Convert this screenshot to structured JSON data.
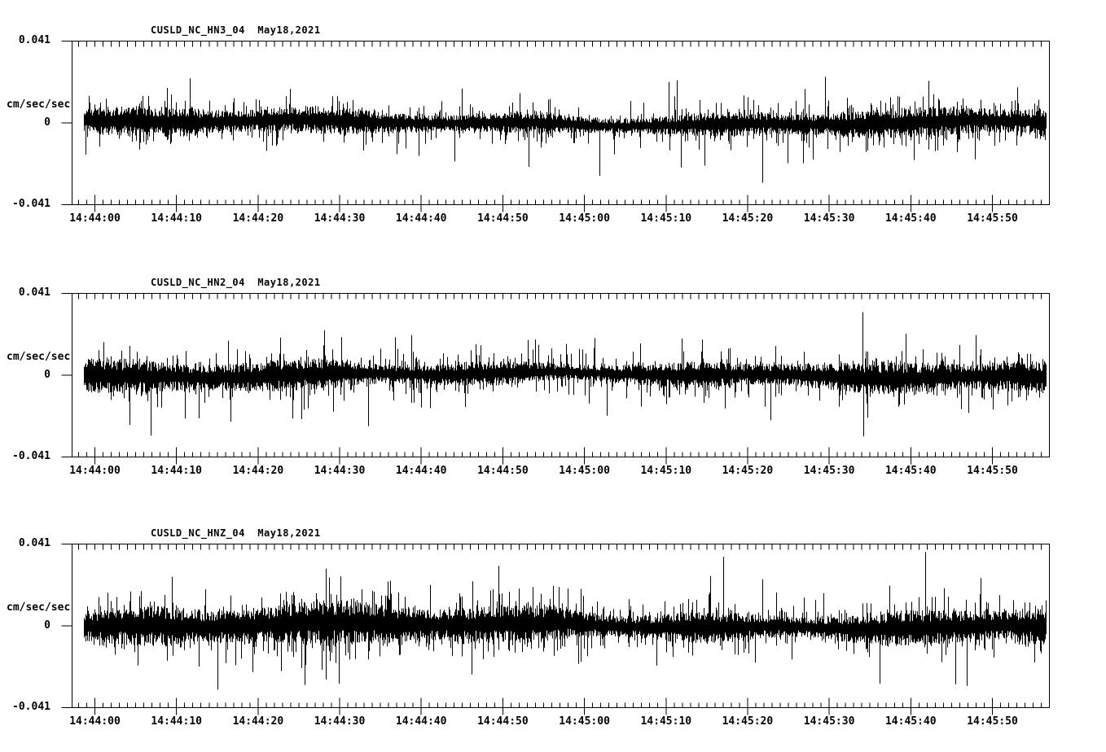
{
  "page": {
    "background": "#ffffff",
    "ink": "#000000",
    "description": "Three-channel seismogram strip chart for station CUSLD (NC network), May 18, 2021"
  },
  "time_axis": {
    "labels": [
      "14:44:00",
      "14:44:10",
      "14:44:20",
      "14:44:30",
      "14:44:40",
      "14:44:50",
      "14:45:00",
      "14:45:10",
      "14:45:20",
      "14:45:30",
      "14:45:40",
      "14:45:50"
    ],
    "major_tick_interval_s": 10,
    "minor_tick_interval_s": 1,
    "start": "14:43:57",
    "end": "14:45:57"
  },
  "panels": [
    {
      "title": "CUSLD_NC_HN3_04  May18,2021",
      "y_axis": {
        "top_label": "0.041",
        "mid_label": "0",
        "bottom_label": "-0.041",
        "units": "cm/sec/sec"
      }
    },
    {
      "title": "CUSLD_NC_HN2_04  May18,2021",
      "y_axis": {
        "top_label": "0.041",
        "mid_label": "0",
        "bottom_label": "-0.041",
        "units": "cm/sec/sec"
      }
    },
    {
      "title": "CUSLD_NC_HNZ_04  May18,2021",
      "y_axis": {
        "top_label": "0.041",
        "mid_label": "0",
        "bottom_label": "-0.041",
        "units": "cm/sec/sec"
      }
    }
  ],
  "chart_data": [
    {
      "type": "line",
      "name": "CUSLD_NC_HN3_04",
      "title": "CUSLD_NC_HN3_04  May18,2021",
      "date_label": "May18,2021",
      "ylabel": "cm/sec/sec",
      "ylim": [
        -0.041,
        0.041
      ],
      "y_tick_values": [
        0.041,
        0,
        -0.041
      ],
      "x_tick_labels": [
        "14:44:00",
        "14:44:10",
        "14:44:20",
        "14:44:30",
        "14:44:40",
        "14:44:50",
        "14:45:00",
        "14:45:10",
        "14:45:20",
        "14:45:30",
        "14:45:40",
        "14:45:50"
      ],
      "x_range": [
        "14:43:57",
        "14:45:57"
      ],
      "x_minor_tick_s": 1,
      "grid": false,
      "legend": false,
      "signal": {
        "kind": "continuous-ground-motion-noise",
        "mean": 0,
        "core_amplitude": 0.0037,
        "spike_amplitude_typical": 0.004,
        "spike_amplitude_max": 0.035,
        "spike_probability": 0.24,
        "seed": 101
      }
    },
    {
      "type": "line",
      "name": "CUSLD_NC_HN2_04",
      "title": "CUSLD_NC_HN2_04  May18,2021",
      "date_label": "May18,2021",
      "ylabel": "cm/sec/sec",
      "ylim": [
        -0.041,
        0.041
      ],
      "y_tick_values": [
        0.041,
        0,
        -0.041
      ],
      "x_tick_labels": [
        "14:44:00",
        "14:44:10",
        "14:44:20",
        "14:44:30",
        "14:44:40",
        "14:44:50",
        "14:45:00",
        "14:45:10",
        "14:45:20",
        "14:45:30",
        "14:45:40",
        "14:45:50"
      ],
      "x_range": [
        "14:43:57",
        "14:45:57"
      ],
      "x_minor_tick_s": 1,
      "grid": false,
      "legend": false,
      "signal": {
        "kind": "continuous-ground-motion-noise",
        "mean": 0,
        "core_amplitude": 0.0041,
        "spike_amplitude_typical": 0.004,
        "spike_amplitude_max": 0.033,
        "spike_probability": 0.26,
        "seed": 202
      }
    },
    {
      "type": "line",
      "name": "CUSLD_NC_HNZ_04",
      "title": "CUSLD_NC_HNZ_04  May18,2021",
      "date_label": "May18,2021",
      "ylabel": "cm/sec/sec",
      "ylim": [
        -0.041,
        0.041
      ],
      "y_tick_values": [
        0.041,
        0,
        -0.041
      ],
      "x_tick_labels": [
        "14:44:00",
        "14:44:10",
        "14:44:20",
        "14:44:30",
        "14:44:40",
        "14:44:50",
        "14:45:00",
        "14:45:10",
        "14:45:20",
        "14:45:30",
        "14:45:40",
        "14:45:50"
      ],
      "x_range": [
        "14:43:57",
        "14:45:57"
      ],
      "x_minor_tick_s": 1,
      "grid": false,
      "legend": false,
      "signal": {
        "kind": "continuous-ground-motion-noise",
        "mean": 0,
        "core_amplitude": 0.0053,
        "spike_amplitude_typical": 0.0044,
        "spike_amplitude_max": 0.038,
        "spike_probability": 0.3,
        "seed": 303
      }
    }
  ]
}
